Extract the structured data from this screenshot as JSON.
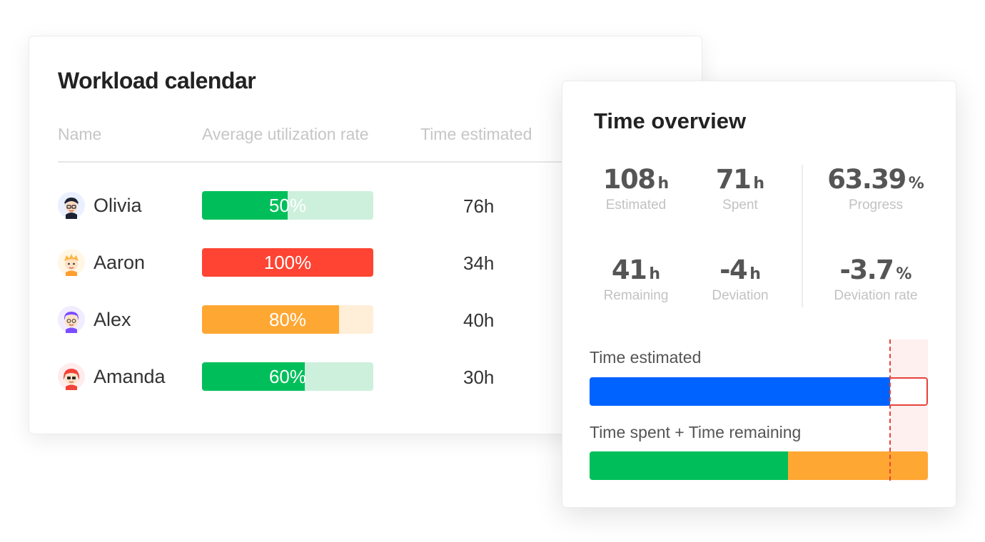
{
  "workload": {
    "title": "Workload calendar",
    "columns": {
      "name": "Name",
      "utilization": "Average utilization rate",
      "estimated": "Time estimated"
    },
    "rows": [
      {
        "name": "Olivia",
        "utilization_label": "50%",
        "utilization": 50,
        "hours": "76h",
        "color": "#00bf5a",
        "track": "#cdf0dd"
      },
      {
        "name": "Aaron",
        "utilization_label": "100%",
        "utilization": 100,
        "hours": "34h",
        "color": "#ff4433",
        "track": "#ffd9d4"
      },
      {
        "name": "Alex",
        "utilization_label": "80%",
        "utilization": 80,
        "hours": "40h",
        "color": "#ffa733",
        "track": "#ffeed8"
      },
      {
        "name": "Amanda",
        "utilization_label": "60%",
        "utilization": 60,
        "hours": "30h",
        "color": "#00bf5a",
        "track": "#cdf0dd"
      }
    ],
    "avatar_icons": [
      "olivia-avatar-icon",
      "aaron-avatar-icon",
      "alex-avatar-icon",
      "amanda-avatar-icon"
    ]
  },
  "overview": {
    "title": "Time overview",
    "stats": {
      "estimated": {
        "value": "108",
        "unit": "h",
        "label": "Estimated"
      },
      "spent": {
        "value": "71",
        "unit": "h",
        "label": "Spent"
      },
      "progress": {
        "value": "63.39",
        "unit": "%",
        "label": "Progress"
      },
      "remaining": {
        "value": "41",
        "unit": "h",
        "label": "Remaining"
      },
      "deviation": {
        "value": "-4",
        "unit": "h",
        "label": "Deviation"
      },
      "deviation_rate": {
        "value": "-3.7",
        "unit": "%",
        "label": "Deviation rate"
      }
    },
    "time_estimated_label": "Time estimated",
    "spent_remaining_label": "Time spent + Time remaining",
    "bars": {
      "estimated_fraction": 0.888,
      "spent_fraction": 0.587,
      "total_fraction": 1.0
    },
    "colors": {
      "estimated": "#0062ff",
      "spent": "#00bf5a",
      "remaining": "#ffa733",
      "limit": "#e8413a",
      "overflow": "#fdf0ef"
    }
  }
}
